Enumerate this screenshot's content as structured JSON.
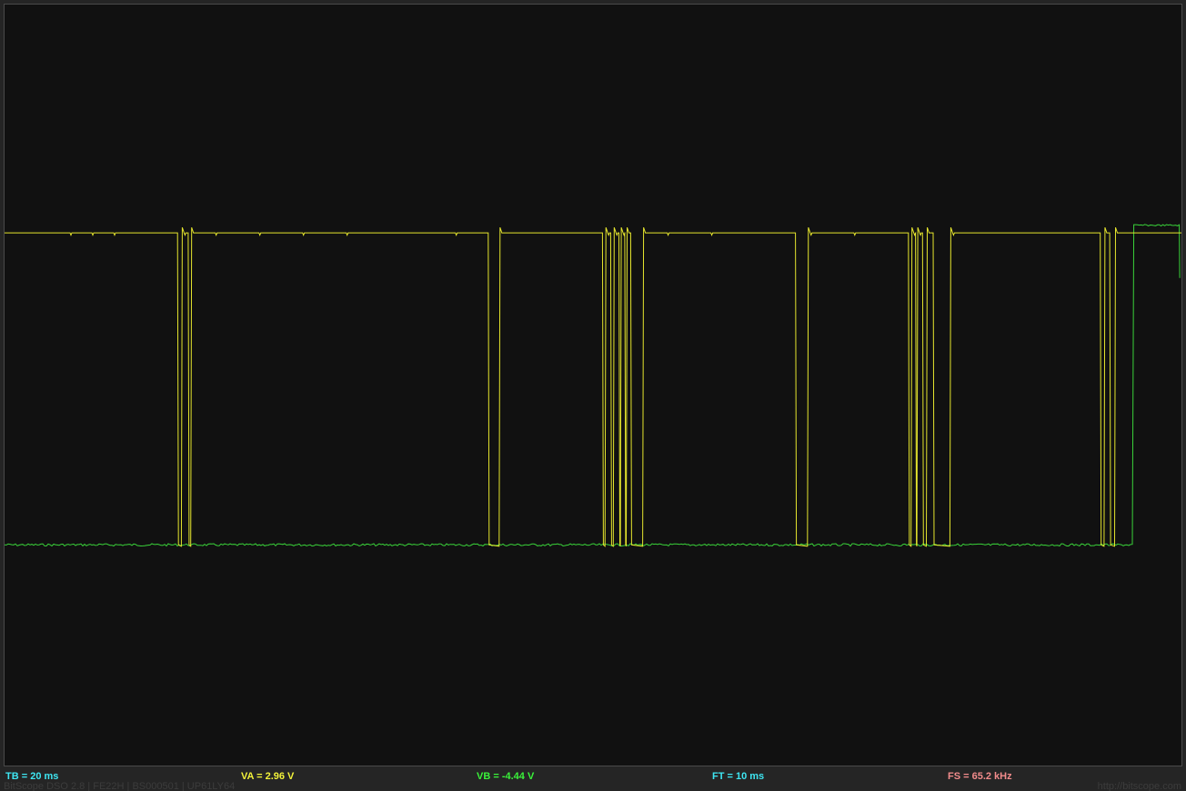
{
  "readouts": {
    "tb": "TB = 20 ms",
    "va": "VA = 2.96 V",
    "vb": "VB = -4.44 V",
    "ft": "FT = 10 ms",
    "fs": "FS = 65.2 kHz"
  },
  "footer": {
    "software_info": "BitScope DSO 2.8 | FE22H | BS000501 | UP61LY64",
    "website": "http://bitscope.com"
  },
  "colors": {
    "background": "#252525",
    "display": "#111111",
    "channel_a": "#e6e62e",
    "channel_b": "#3ad43a",
    "tb": "#3ee6f2",
    "va": "#f2f23a",
    "vb": "#3af23a",
    "ft": "#3ee6f2",
    "fs": "#f28c8c"
  },
  "traces": {
    "channel_a": {
      "name": "A",
      "high_level_fraction": 0.7,
      "low_level_fraction": 0.29,
      "pulse_lows_fraction": [
        [
          0.147,
          0.151
        ],
        [
          0.156,
          0.159
        ],
        [
          0.411,
          0.421
        ],
        [
          0.508,
          0.511
        ],
        [
          0.515,
          0.518
        ],
        [
          0.522,
          0.524
        ],
        [
          0.527,
          0.529
        ],
        [
          0.532,
          0.543
        ],
        [
          0.672,
          0.683
        ],
        [
          0.768,
          0.771
        ],
        [
          0.774,
          0.776
        ],
        [
          0.78,
          0.784
        ],
        [
          0.789,
          0.804
        ],
        [
          0.931,
          0.935
        ],
        [
          0.939,
          0.944
        ]
      ]
    },
    "channel_b": {
      "name": "B",
      "low_level_fraction": 0.29,
      "high_level_fraction": 0.71,
      "rise_at_fraction": 0.9595,
      "fall_at_fraction": 0.9985
    }
  }
}
